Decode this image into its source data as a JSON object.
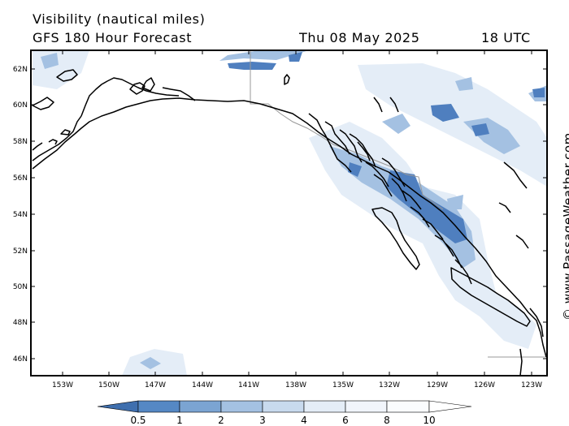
{
  "header": {
    "title": "Visibility (nautical miles)",
    "subtitle": "GFS 180 Hour Forecast",
    "date": "Thu 08 May 2025",
    "time": "18 UTC"
  },
  "credit": "© www.PassageWeather.com",
  "map": {
    "lat_labels": [
      "62N",
      "60N",
      "58N",
      "56N",
      "54N",
      "52N",
      "50N",
      "48N",
      "46N"
    ],
    "lon_labels": [
      "153W",
      "150W",
      "147W",
      "144W",
      "141W",
      "138W",
      "135W",
      "132W",
      "129W",
      "126W",
      "123W"
    ],
    "land_outline_color": "#000000",
    "border_color": "#999999"
  },
  "colorbar": {
    "labels": [
      "0.5",
      "1",
      "2",
      "3",
      "4",
      "6",
      "8",
      "10"
    ],
    "colors": [
      "#3f6fae",
      "#5588c4",
      "#7ba4d2",
      "#a4c1e2",
      "#c8daee",
      "#e4edf7",
      "#f6f9fd",
      "#ffffff"
    ]
  }
}
